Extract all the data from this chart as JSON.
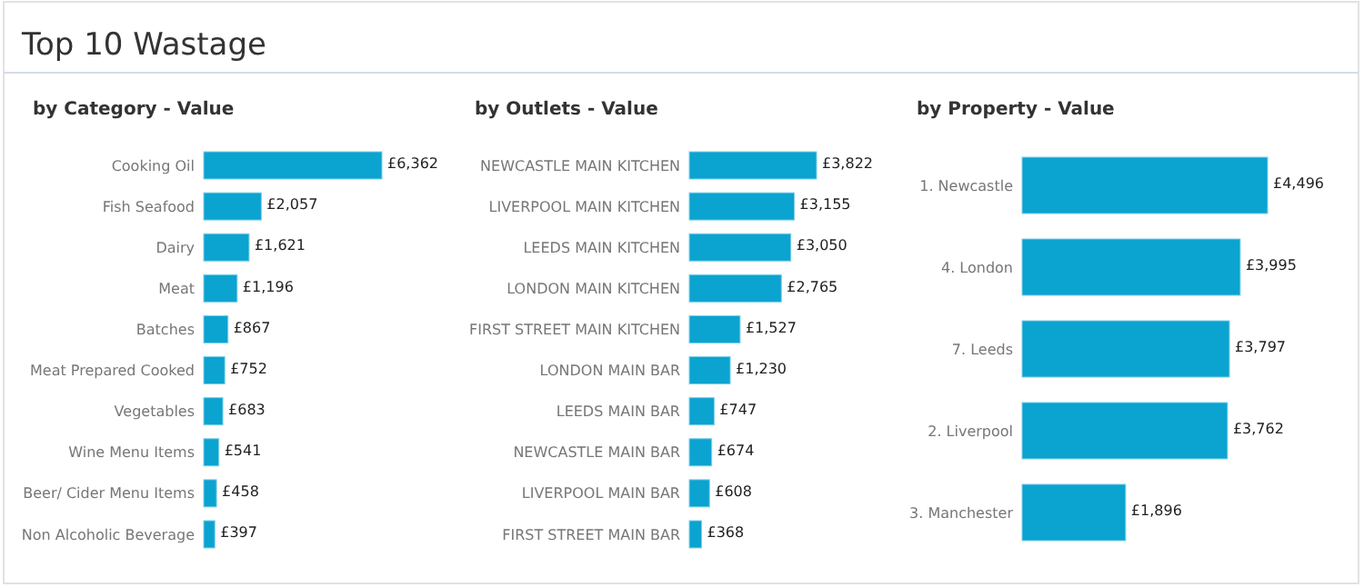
{
  "chart_data": [
    {
      "type": "other",
      "title": "Top 10 Wastage"
    },
    {
      "type": "bar",
      "orientation": "horizontal",
      "title": "by Category - Value",
      "categories": [
        "Cooking Oil",
        "Fish Seafood",
        "Dairy",
        "Meat",
        "Batches",
        "Meat Prepared Cooked",
        "Vegetables",
        "Wine Menu Items",
        "Beer/ Cider Menu Items",
        "Non Alcoholic Beverage"
      ],
      "values": [
        6362,
        2057,
        1621,
        1196,
        867,
        752,
        683,
        541,
        458,
        397
      ],
      "value_labels": [
        "£6,362",
        "£2,057",
        "£1,621",
        "£1,196",
        "£867",
        "£752",
        "£683",
        "£541",
        "£458",
        "£397"
      ],
      "color": "#0ba3d0",
      "tick_labels": "y"
    },
    {
      "type": "bar",
      "orientation": "horizontal",
      "title": "by Outlets - Value",
      "categories": [
        "NEWCASTLE MAIN KITCHEN",
        "LIVERPOOL MAIN KITCHEN",
        "LEEDS MAIN KITCHEN",
        "LONDON MAIN KITCHEN",
        "FIRST STREET MAIN KITCHEN",
        "LONDON MAIN BAR",
        "LEEDS MAIN BAR",
        "NEWCASTLE MAIN BAR",
        "LIVERPOOL MAIN BAR",
        "FIRST STREET MAIN BAR"
      ],
      "values": [
        3822,
        3155,
        3050,
        2765,
        1527,
        1230,
        747,
        674,
        608,
        368
      ],
      "value_labels": [
        "£3,822",
        "£3,155",
        "£3,050",
        "£2,765",
        "£1,527",
        "£1,230",
        "£747",
        "£674",
        "£608",
        "£368"
      ],
      "color": "#0ba3d0",
      "tick_labels": "y"
    },
    {
      "type": "bar",
      "orientation": "horizontal",
      "title": "by Property - Value",
      "categories": [
        "1. Newcastle",
        "4. London",
        "7. Leeds",
        "2. Liverpool",
        "3. Manchester"
      ],
      "values": [
        4496,
        3995,
        3797,
        3762,
        1896
      ],
      "value_labels": [
        "£4,496",
        "£3,995",
        "£3,797",
        "£3,762",
        "£1,896"
      ],
      "color": "#0ba3d0",
      "tick_labels": "y"
    }
  ]
}
